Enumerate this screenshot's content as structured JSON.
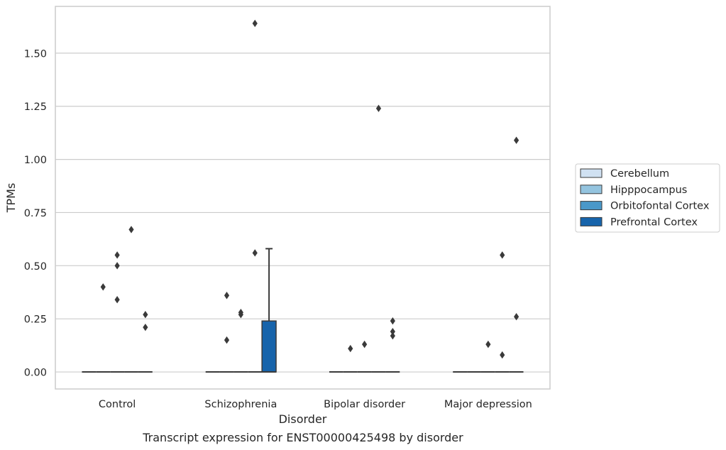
{
  "chart_data": {
    "type": "box",
    "xlabel": "Disorder",
    "ylabel": "TPMs",
    "caption": "Transcript expression for ENST00000425498 by disorder",
    "categories": [
      "Control",
      "Schizophrenia",
      "Bipolar disorder",
      "Major depression"
    ],
    "yticks": [
      "0.00",
      "0.25",
      "0.50",
      "0.75",
      "1.00",
      "1.25",
      "1.50"
    ],
    "ylim": [
      -0.08,
      1.72
    ],
    "grid": true,
    "legend_position": "right",
    "series": [
      {
        "name": "Cerebellum",
        "color": "#d0e1f2",
        "boxes": [
          {
            "q1": 0,
            "median": 0,
            "q3": 0,
            "whisker_low": 0,
            "whisker_high": 0,
            "outliers": []
          },
          {
            "q1": 0,
            "median": 0,
            "q3": 0,
            "whisker_low": 0,
            "whisker_high": 0,
            "outliers": []
          },
          {
            "q1": 0,
            "median": 0,
            "q3": 0,
            "whisker_low": 0,
            "whisker_high": 0,
            "outliers": []
          },
          {
            "q1": 0,
            "median": 0,
            "q3": 0,
            "whisker_low": 0,
            "whisker_high": 0,
            "outliers": []
          }
        ]
      },
      {
        "name": "Hipppocampus",
        "color": "#94c4df",
        "boxes": [
          {
            "q1": 0,
            "median": 0,
            "q3": 0,
            "whisker_low": 0,
            "whisker_high": 0,
            "outliers": [
              0.4
            ]
          },
          {
            "q1": 0,
            "median": 0,
            "q3": 0,
            "whisker_low": 0,
            "whisker_high": 0,
            "outliers": [
              0.36,
              0.15
            ]
          },
          {
            "q1": 0,
            "median": 0,
            "q3": 0,
            "whisker_low": 0,
            "whisker_high": 0,
            "outliers": [
              0.11
            ]
          },
          {
            "q1": 0,
            "median": 0,
            "q3": 0,
            "whisker_low": 0,
            "whisker_high": 0,
            "outliers": []
          }
        ]
      },
      {
        "name": "Orbitofontal Cortex",
        "color": "#4a98c9",
        "boxes": [
          {
            "q1": 0,
            "median": 0,
            "q3": 0,
            "whisker_low": 0,
            "whisker_high": 0,
            "outliers": [
              0.55,
              0.5,
              0.34
            ]
          },
          {
            "q1": 0,
            "median": 0,
            "q3": 0,
            "whisker_low": 0,
            "whisker_high": 0,
            "outliers": [
              0.28,
              0.27
            ]
          },
          {
            "q1": 0,
            "median": 0,
            "q3": 0,
            "whisker_low": 0,
            "whisker_high": 0,
            "outliers": [
              0.13
            ]
          },
          {
            "q1": 0,
            "median": 0,
            "q3": 0,
            "whisker_low": 0,
            "whisker_high": 0,
            "outliers": [
              0.13
            ]
          }
        ]
      },
      {
        "name": "Prefrontal Cortex",
        "color": "#1764ab",
        "boxes": [
          {
            "q1": 0,
            "median": 0,
            "q3": 0,
            "whisker_low": 0,
            "whisker_high": 0,
            "outliers": [
              0.67
            ]
          },
          {
            "q1": 0,
            "median": 0,
            "q3": 0,
            "whisker_low": 0,
            "whisker_high": 0,
            "outliers": [
              1.64,
              0.56
            ]
          },
          {
            "q1": 0,
            "median": 0,
            "q3": 0,
            "whisker_low": 0,
            "whisker_high": 0,
            "outliers": [
              1.24
            ]
          },
          {
            "q1": 0,
            "median": 0,
            "q3": 0,
            "whisker_low": 0,
            "whisker_high": 0,
            "outliers": [
              0.55,
              0.08
            ]
          }
        ]
      },
      {
        "name": "",
        "color": "#1764ab",
        "hidden_legend": true,
        "boxes": [
          {
            "q1": 0,
            "median": 0,
            "q3": 0,
            "whisker_low": 0,
            "whisker_high": 0,
            "outliers": [
              0.27,
              0.21
            ]
          },
          {
            "q1": 0,
            "median": 0,
            "q3": 0.24,
            "whisker_low": 0,
            "whisker_high": 0.58,
            "outliers": []
          },
          {
            "q1": 0,
            "median": 0,
            "q3": 0,
            "whisker_low": 0,
            "whisker_high": 0,
            "outliers": [
              0.24,
              0.19,
              0.17
            ]
          },
          {
            "q1": 0,
            "median": 0,
            "q3": 0,
            "whisker_low": 0,
            "whisker_high": 0,
            "outliers": [
              1.09,
              0.26
            ]
          }
        ]
      }
    ]
  }
}
